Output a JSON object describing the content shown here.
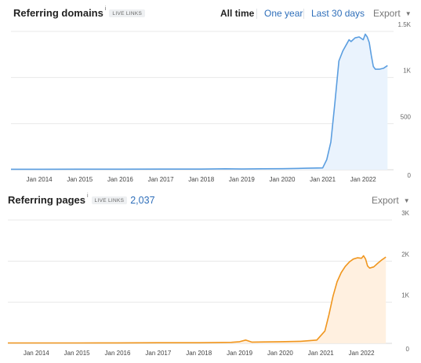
{
  "colors": {
    "link": "#2f6fba",
    "series1_line": "#5b9ee0",
    "series1_fill": "#eaf3fd",
    "series2_line": "#f0961e",
    "series2_fill": "#fff0e0",
    "grid": "#e8e8e8"
  },
  "panel1": {
    "title": "Referring domains",
    "info_icon": "i",
    "badge": "LIVE LINKS",
    "ranges": [
      {
        "label": "All time",
        "active": true
      },
      {
        "label": "One year",
        "active": false
      },
      {
        "label": "Last 30 days",
        "active": false
      }
    ],
    "export_label": "Export",
    "caret_icon": "▼"
  },
  "panel2": {
    "title": "Referring pages",
    "info_icon": "i",
    "badge": "LIVE LINKS",
    "count": "2,037",
    "export_label": "Export",
    "caret_icon": "▼"
  },
  "chart_data": [
    {
      "type": "area",
      "title": "Referring domains",
      "x_ticks": [
        "Jan 2014",
        "Jan 2015",
        "Jan 2016",
        "Jan 2017",
        "Jan 2018",
        "Jan 2019",
        "Jan 2020",
        "Jan 2021",
        "Jan 2022"
      ],
      "y_ticks": [
        "0",
        "500",
        "1K",
        "1.5K"
      ],
      "ylim": [
        0,
        1500
      ],
      "xlim": [
        2013.3,
        2022.75
      ],
      "grid": true,
      "series": [
        {
          "x": [
            2013.3,
            2014,
            2015,
            2016,
            2017,
            2018,
            2018.6,
            2019,
            2019.5,
            2020,
            2020.6,
            2021.0,
            2021.1,
            2021.2,
            2021.3,
            2021.4,
            2021.5,
            2021.6,
            2021.65,
            2021.7,
            2021.8,
            2021.9,
            2022.0,
            2022.05,
            2022.1,
            2022.15,
            2022.2,
            2022.25,
            2022.3,
            2022.4,
            2022.5,
            2022.6
          ],
          "y": [
            5,
            5,
            6,
            6,
            7,
            7,
            10,
            8,
            10,
            11,
            16,
            20,
            110,
            300,
            720,
            1180,
            1290,
            1370,
            1410,
            1390,
            1430,
            1440,
            1410,
            1470,
            1440,
            1380,
            1240,
            1120,
            1090,
            1090,
            1100,
            1130
          ]
        }
      ]
    },
    {
      "type": "area",
      "title": "Referring pages",
      "x_ticks": [
        "Jan 2014",
        "Jan 2015",
        "Jan 2016",
        "Jan 2017",
        "Jan 2018",
        "Jan 2019",
        "Jan 2020",
        "Jan 2021",
        "Jan 2022"
      ],
      "y_ticks": [
        "0",
        "1K",
        "2K",
        "3K"
      ],
      "ylim": [
        0,
        3000
      ],
      "xlim": [
        2013.3,
        2022.75
      ],
      "grid": true,
      "series": [
        {
          "x": [
            2013.3,
            2014,
            2015,
            2016,
            2017,
            2018,
            2018.8,
            2019.0,
            2019.15,
            2019.3,
            2019.6,
            2020,
            2020.5,
            2020.9,
            2021.1,
            2021.2,
            2021.3,
            2021.4,
            2021.5,
            2021.6,
            2021.7,
            2021.8,
            2021.9,
            2022.0,
            2022.05,
            2022.1,
            2022.15,
            2022.2,
            2022.3,
            2022.4,
            2022.5,
            2022.6
          ],
          "y": [
            10,
            10,
            10,
            12,
            15,
            15,
            25,
            40,
            80,
            30,
            35,
            40,
            50,
            80,
            300,
            700,
            1150,
            1500,
            1720,
            1870,
            1980,
            2050,
            2080,
            2070,
            2130,
            2050,
            1880,
            1830,
            1860,
            1950,
            2030,
            2100
          ]
        }
      ]
    }
  ]
}
